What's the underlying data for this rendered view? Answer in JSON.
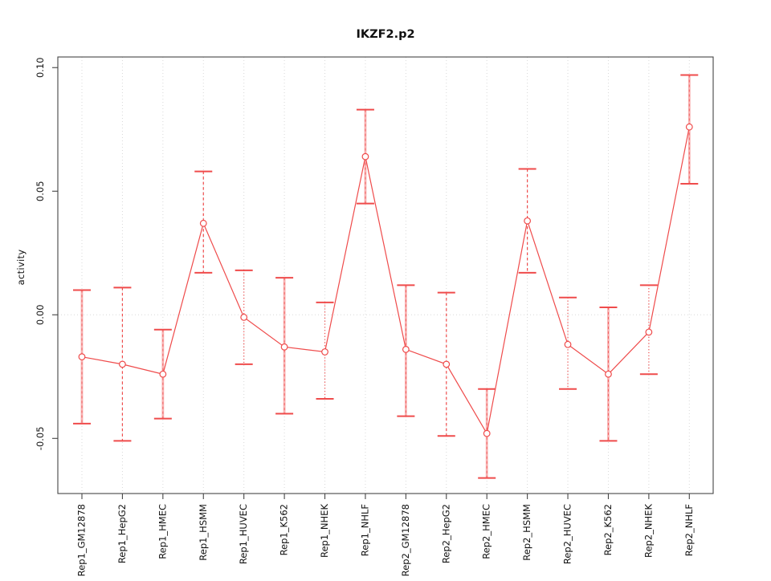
{
  "title": "IKZF2.p2",
  "colors": {
    "series": "#ef4b4b",
    "errorbar_stem_pink": "#f8b2b2",
    "grid": "#d8d8d8",
    "axis": "#454545",
    "text": "#111111",
    "background": "#ffffff"
  },
  "chart_data": {
    "type": "line",
    "title": "IKZF2.p2",
    "xlabel": "",
    "ylabel": "activity",
    "ylim": [
      -0.0723,
      0.1043
    ],
    "yticks": [
      -0.05,
      0.0,
      0.05,
      0.1
    ],
    "ytick_labels": [
      "-0.05",
      "0.00",
      "0.05",
      "0.10"
    ],
    "grid": "dotted vertical line at each category; dotted horizontal line at y=0",
    "legend": "none",
    "marker": "open-circle",
    "categories": [
      "Rep1_GM12878",
      "Rep1_HepG2",
      "Rep1_HMEC",
      "Rep1_HSMM",
      "Rep1_HUVEC",
      "Rep1_K562",
      "Rep1_NHEK",
      "Rep1_NHLF",
      "Rep2_GM12878",
      "Rep2_HepG2",
      "Rep2_HMEC",
      "Rep2_HSMM",
      "Rep2_HUVEC",
      "Rep2_K562",
      "Rep2_NHEK",
      "Rep2_NHLF"
    ],
    "points": [
      {
        "label": "Rep1_GM12878",
        "value": -0.017,
        "lower": -0.044,
        "upper": 0.01,
        "stem_style": "pink"
      },
      {
        "label": "Rep1_HepG2",
        "value": -0.02,
        "lower": -0.051,
        "upper": 0.011,
        "stem_style": "dashed"
      },
      {
        "label": "Rep1_HMEC",
        "value": -0.024,
        "lower": -0.042,
        "upper": -0.006,
        "stem_style": "pink"
      },
      {
        "label": "Rep1_HSMM",
        "value": 0.037,
        "lower": 0.017,
        "upper": 0.058,
        "stem_style": "dashed"
      },
      {
        "label": "Rep1_HUVEC",
        "value": -0.001,
        "lower": -0.02,
        "upper": 0.018,
        "stem_style": "dotted"
      },
      {
        "label": "Rep1_K562",
        "value": -0.013,
        "lower": -0.04,
        "upper": 0.015,
        "stem_style": "pink"
      },
      {
        "label": "Rep1_NHEK",
        "value": -0.015,
        "lower": -0.034,
        "upper": 0.005,
        "stem_style": "dotted"
      },
      {
        "label": "Rep1_NHLF",
        "value": 0.064,
        "lower": 0.045,
        "upper": 0.083,
        "stem_style": "pink"
      },
      {
        "label": "Rep2_GM12878",
        "value": -0.014,
        "lower": -0.041,
        "upper": 0.012,
        "stem_style": "pink"
      },
      {
        "label": "Rep2_HepG2",
        "value": -0.02,
        "lower": -0.049,
        "upper": 0.009,
        "stem_style": "dashed"
      },
      {
        "label": "Rep2_HMEC",
        "value": -0.048,
        "lower": -0.066,
        "upper": -0.03,
        "stem_style": "pink"
      },
      {
        "label": "Rep2_HSMM",
        "value": 0.038,
        "lower": 0.017,
        "upper": 0.059,
        "stem_style": "dashed"
      },
      {
        "label": "Rep2_HUVEC",
        "value": -0.012,
        "lower": -0.03,
        "upper": 0.007,
        "stem_style": "dotted"
      },
      {
        "label": "Rep2_K562",
        "value": -0.024,
        "lower": -0.051,
        "upper": 0.003,
        "stem_style": "pink"
      },
      {
        "label": "Rep2_NHEK",
        "value": -0.007,
        "lower": -0.024,
        "upper": 0.012,
        "stem_style": "dotted"
      },
      {
        "label": "Rep2_NHLF",
        "value": 0.076,
        "lower": 0.053,
        "upper": 0.097,
        "stem_style": "pink"
      }
    ]
  }
}
